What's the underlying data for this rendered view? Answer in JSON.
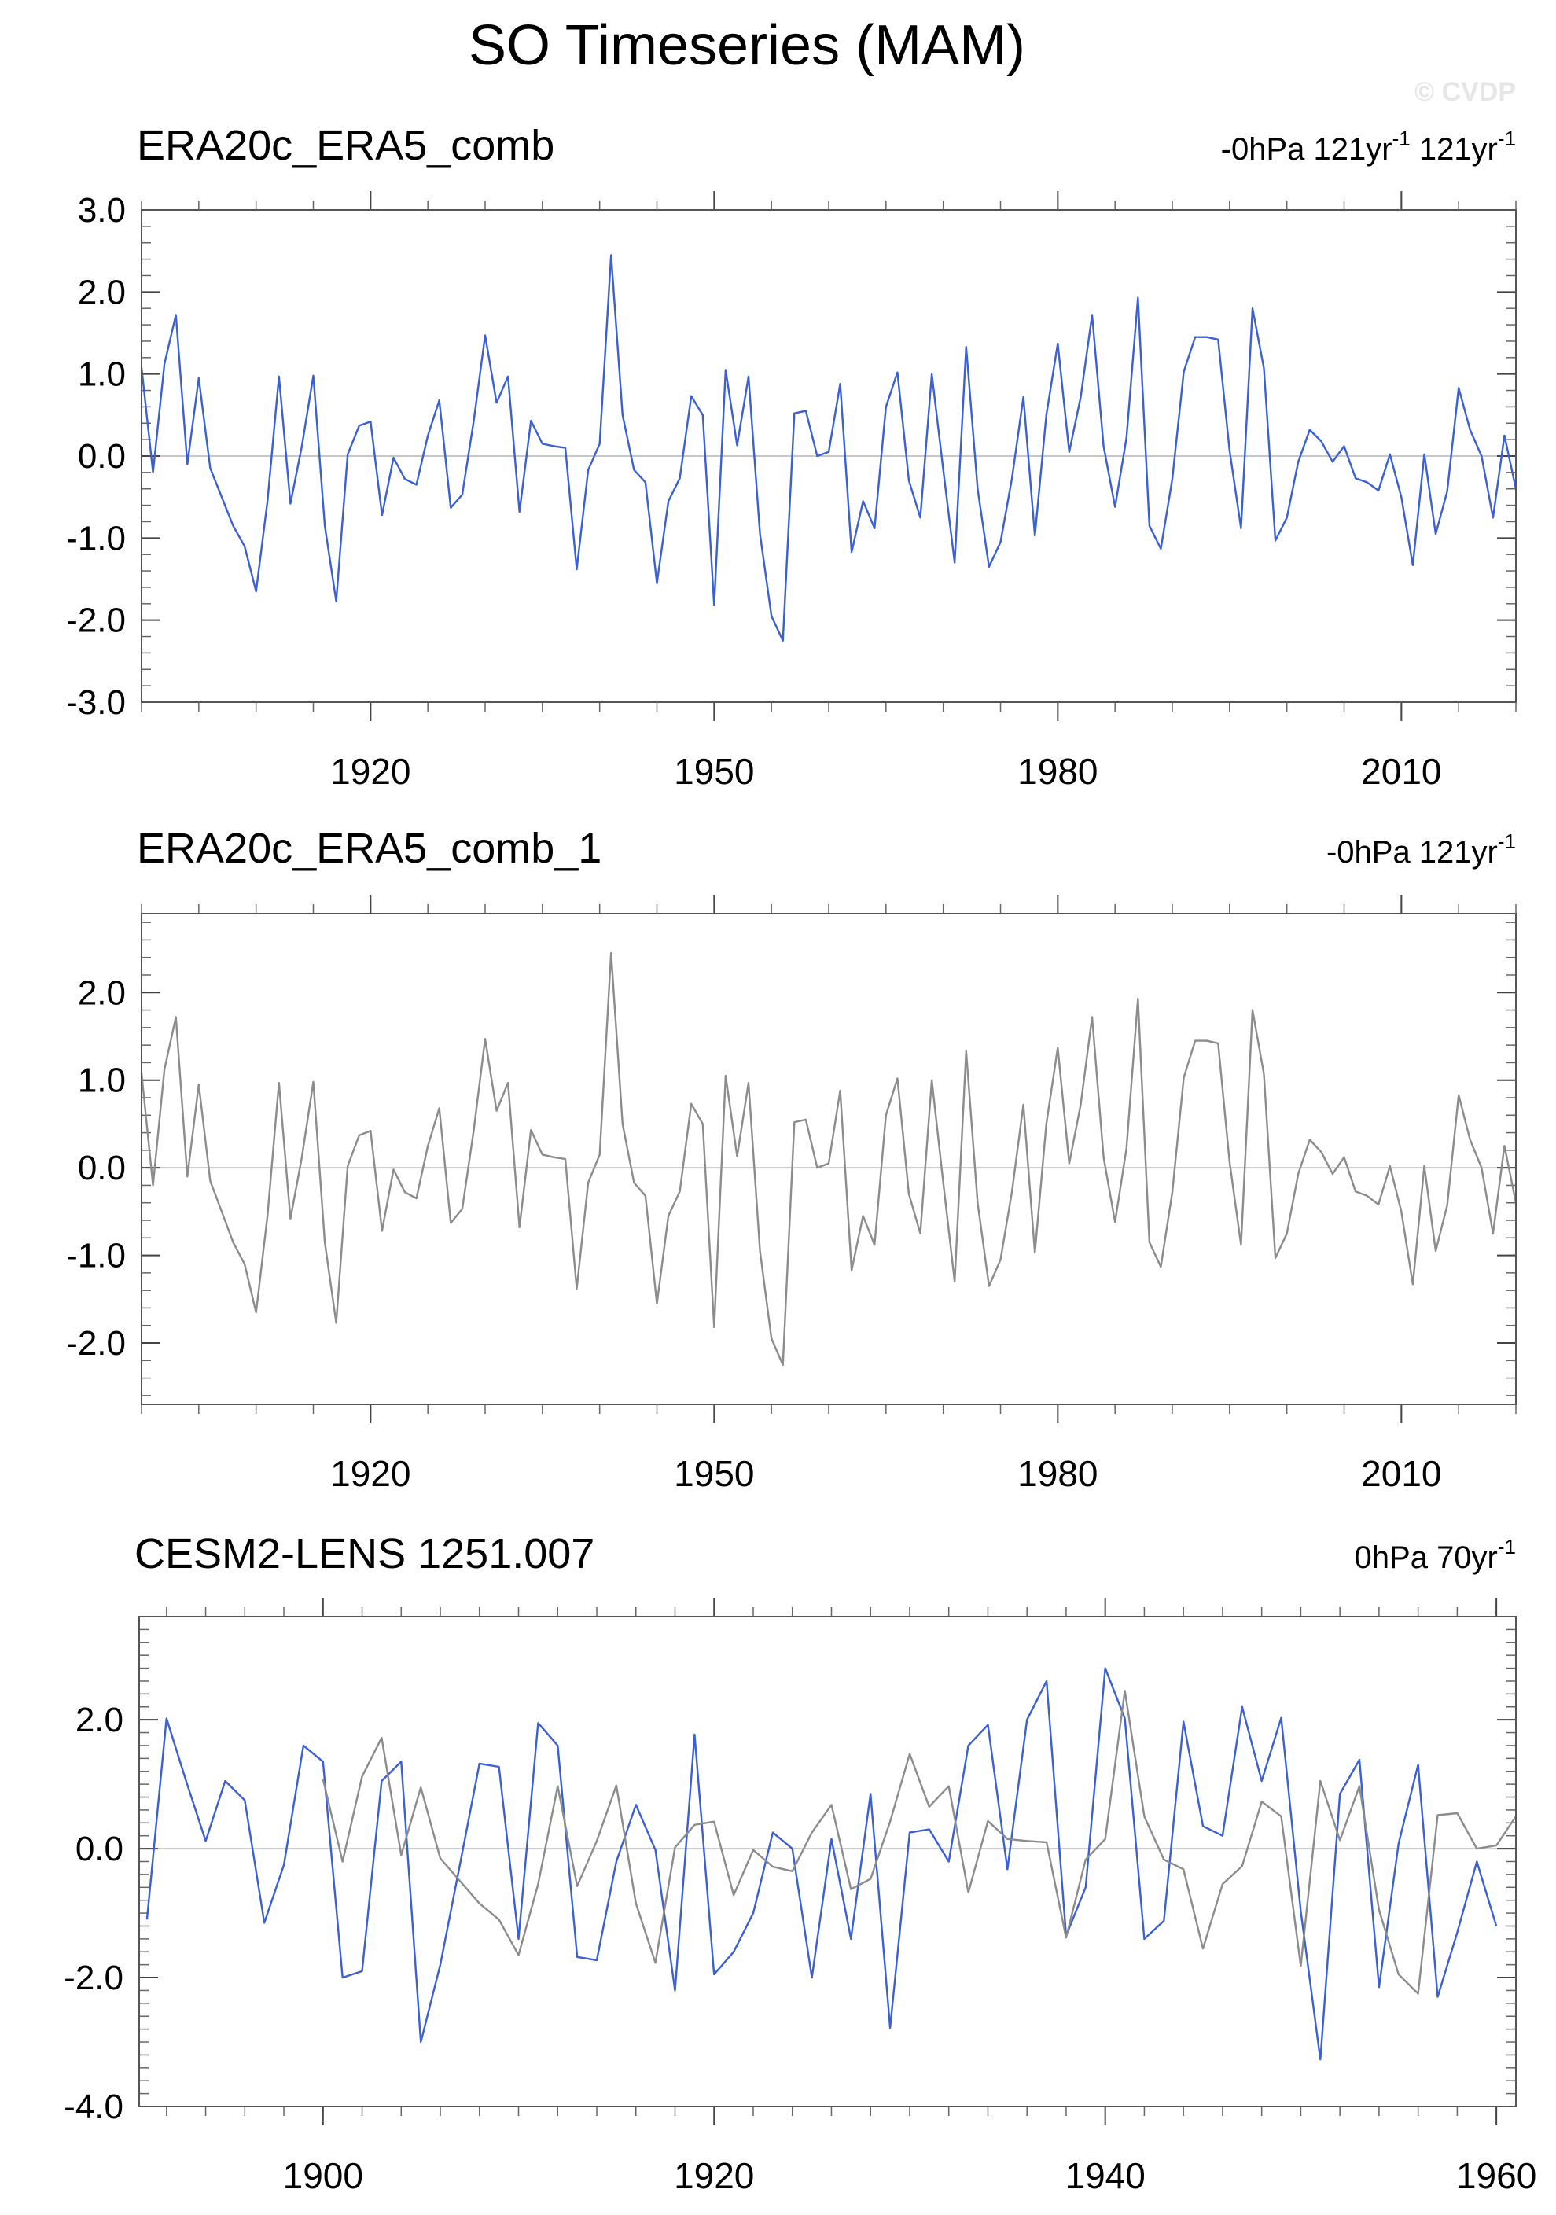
{
  "page": {
    "title": "SO Timeseries (MAM)",
    "watermark": "© CVDP"
  },
  "chart_data": [
    {
      "type": "line",
      "title": "ERA20c_ERA5_comb",
      "right_label": "-0hPa 121yr",
      "right_label_sup": "-1",
      "right_label_2": " 121yr",
      "right_label_2_sup": "-1",
      "xlim": [
        1900,
        2020
      ],
      "ylim": [
        -3,
        3
      ],
      "yticks": [
        -3,
        -2,
        -1,
        0,
        1,
        2,
        3
      ],
      "ytick_labels": [
        "-3.0",
        "-2.0",
        "-1.0",
        "0.0",
        "1.0",
        "2.0",
        "3.0"
      ],
      "xticks": [
        1920,
        1950,
        1980,
        2010
      ],
      "xtick_labels": [
        "1920",
        "1950",
        "1980",
        "2010"
      ],
      "grid": false,
      "zero_line": true,
      "series": [
        {
          "color": "#3b5fd6",
          "x_start": 1900,
          "values": [
            1.08,
            -0.2,
            1.12,
            1.72,
            -0.1,
            0.95,
            -0.15,
            -0.5,
            -0.85,
            -1.1,
            -1.65,
            -0.55,
            0.97,
            -0.58,
            0.12,
            0.98,
            -0.85,
            -1.77,
            0.02,
            0.37,
            0.42,
            -0.72,
            -0.02,
            -0.28,
            -0.35,
            0.25,
            0.68,
            -0.63,
            -0.47,
            0.42,
            1.47,
            0.65,
            0.97,
            -0.68,
            0.43,
            0.15,
            0.12,
            0.1,
            -1.38,
            -0.17,
            0.15,
            2.45,
            0.5,
            -0.17,
            -0.32,
            -1.55,
            -0.55,
            -0.27,
            0.73,
            0.5,
            -1.82,
            1.05,
            0.13,
            0.97,
            -0.95,
            -1.95,
            -2.25,
            0.52,
            0.55,
            0.0,
            0.05,
            0.88,
            -1.17,
            -0.55,
            -0.88,
            0.6,
            1.02,
            -0.3,
            -0.75,
            1.0,
            -0.17,
            -1.3,
            1.33,
            -0.4,
            -1.35,
            -1.05,
            -0.27,
            0.72,
            -0.97,
            0.5,
            1.37,
            0.05,
            0.72,
            1.72,
            0.12,
            -0.62,
            0.22,
            1.93,
            -0.85,
            -1.13,
            -0.28,
            1.03,
            1.45,
            1.45,
            1.42,
            0.07,
            -0.88,
            1.8,
            1.07,
            -1.03,
            -0.75,
            -0.07,
            0.32,
            0.18,
            -0.07,
            0.12,
            -0.27,
            -0.32,
            -0.42,
            0.02,
            -0.5,
            -1.33,
            0.02,
            -0.95,
            -0.43,
            0.83,
            0.32,
            0.0,
            -0.75,
            0.25,
            -0.4
          ]
        }
      ]
    },
    {
      "type": "line",
      "title": "ERA20c_ERA5_comb_1",
      "right_label": "-0hPa 121yr",
      "right_label_sup": "-1",
      "xlim": [
        1900,
        2020
      ],
      "ylim": [
        -2.7,
        2.9
      ],
      "yticks": [
        -2,
        -1,
        0,
        1,
        2
      ],
      "ytick_labels": [
        "-2.0",
        "-1.0",
        "0.0",
        "1.0",
        "2.0"
      ],
      "xticks": [
        1920,
        1950,
        1980,
        2010
      ],
      "xtick_labels": [
        "1920",
        "1950",
        "1980",
        "2010"
      ],
      "grid": false,
      "zero_line": true,
      "series": [
        {
          "color": "#8c8c8c",
          "x_start": 1900,
          "values": [
            1.08,
            -0.2,
            1.12,
            1.72,
            -0.1,
            0.95,
            -0.15,
            -0.5,
            -0.85,
            -1.1,
            -1.65,
            -0.55,
            0.97,
            -0.58,
            0.12,
            0.98,
            -0.85,
            -1.77,
            0.02,
            0.37,
            0.42,
            -0.72,
            -0.02,
            -0.28,
            -0.35,
            0.25,
            0.68,
            -0.63,
            -0.47,
            0.42,
            1.47,
            0.65,
            0.97,
            -0.68,
            0.43,
            0.15,
            0.12,
            0.1,
            -1.38,
            -0.17,
            0.15,
            2.45,
            0.5,
            -0.17,
            -0.32,
            -1.55,
            -0.55,
            -0.27,
            0.73,
            0.5,
            -1.82,
            1.05,
            0.13,
            0.97,
            -0.95,
            -1.95,
            -2.25,
            0.52,
            0.55,
            0.0,
            0.05,
            0.88,
            -1.17,
            -0.55,
            -0.88,
            0.6,
            1.02,
            -0.3,
            -0.75,
            1.0,
            -0.17,
            -1.3,
            1.33,
            -0.4,
            -1.35,
            -1.05,
            -0.27,
            0.72,
            -0.97,
            0.5,
            1.37,
            0.05,
            0.72,
            1.72,
            0.12,
            -0.62,
            0.22,
            1.93,
            -0.85,
            -1.13,
            -0.28,
            1.03,
            1.45,
            1.45,
            1.42,
            0.07,
            -0.88,
            1.8,
            1.07,
            -1.03,
            -0.75,
            -0.07,
            0.32,
            0.18,
            -0.07,
            0.12,
            -0.27,
            -0.32,
            -0.42,
            0.02,
            -0.5,
            -1.33,
            0.02,
            -0.95,
            -0.43,
            0.83,
            0.32,
            0.0,
            -0.75,
            0.25,
            -0.4
          ]
        }
      ]
    },
    {
      "type": "line",
      "title": "CESM2-LENS 1251.007",
      "right_label": "0hPa 70yr",
      "right_label_sup": "-1",
      "xlim": [
        1890.6,
        1961
      ],
      "ylim": [
        -4,
        3.6
      ],
      "yticks": [
        -4,
        -2,
        0,
        2
      ],
      "ytick_labels": [
        "-4.0",
        "-2.0",
        "0.0",
        "2.0"
      ],
      "xticks": [
        1900,
        1920,
        1940,
        1960
      ],
      "xtick_labels": [
        "1900",
        "1920",
        "1940",
        "1960"
      ],
      "grid": false,
      "zero_line": true,
      "series": [
        {
          "color": "#3b5fd6",
          "x_start": 1891,
          "values": [
            -1.1,
            2.02,
            1.05,
            0.12,
            1.05,
            0.75,
            -1.15,
            -0.25,
            1.6,
            1.35,
            -2.0,
            -1.9,
            1.05,
            1.35,
            -3.0,
            -1.8,
            -0.25,
            1.32,
            1.27,
            -1.4,
            1.95,
            1.6,
            -1.68,
            -1.73,
            -0.2,
            0.68,
            -0.02,
            -2.2,
            1.77,
            -1.95,
            -1.6,
            -1.0,
            0.25,
            0.0,
            -2.0,
            0.15,
            -1.4,
            0.85,
            -2.78,
            0.25,
            0.3,
            -0.2,
            1.6,
            1.92,
            -0.32,
            2.0,
            2.6,
            -1.35,
            -0.6,
            2.8,
            2.02,
            -1.4,
            -1.12,
            1.97,
            0.35,
            0.2,
            2.2,
            1.05,
            2.03,
            -0.97,
            -3.27,
            0.85,
            1.38,
            -2.15,
            0.08,
            1.3,
            -2.3,
            -1.3,
            -0.2,
            -1.2
          ]
        },
        {
          "color": "#8c8c8c",
          "x_start": 1900,
          "values": [
            1.08,
            -0.2,
            1.12,
            1.72,
            -0.1,
            0.95,
            -0.15,
            -0.5,
            -0.85,
            -1.1,
            -1.65,
            -0.55,
            0.97,
            -0.58,
            0.12,
            0.98,
            -0.85,
            -1.77,
            0.02,
            0.37,
            0.42,
            -0.72,
            -0.02,
            -0.28,
            -0.35,
            0.25,
            0.68,
            -0.63,
            -0.47,
            0.42,
            1.47,
            0.65,
            0.97,
            -0.68,
            0.43,
            0.15,
            0.12,
            0.1,
            -1.38,
            -0.17,
            0.15,
            2.45,
            0.5,
            -0.17,
            -0.32,
            -1.55,
            -0.55,
            -0.27,
            0.73,
            0.5,
            -1.82,
            1.05,
            0.13,
            0.97,
            -0.95,
            -1.95,
            -2.25,
            0.52,
            0.55,
            0.0,
            0.05,
            0.5
          ]
        }
      ]
    }
  ]
}
